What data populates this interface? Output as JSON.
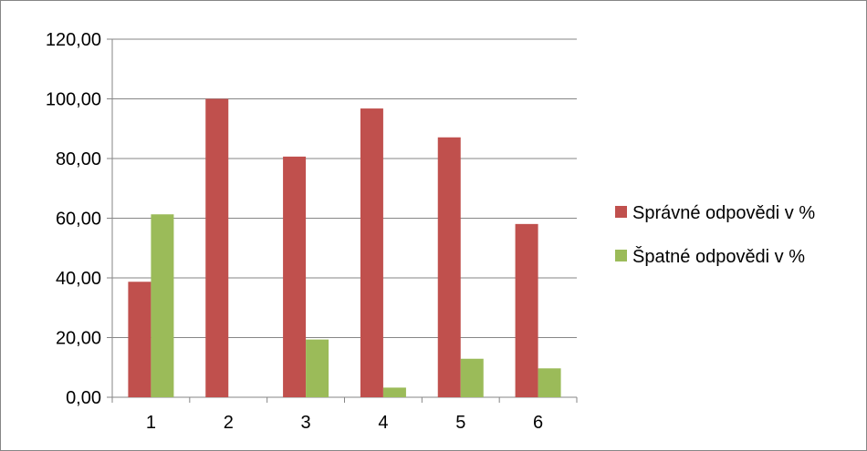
{
  "chart_data": {
    "type": "bar",
    "categories": [
      "1",
      "2",
      "3",
      "4",
      "5",
      "6"
    ],
    "series": [
      {
        "name": "Správné odpovědi v %",
        "values": [
          38.7,
          100.0,
          80.65,
          96.77,
          87.1,
          58.06
        ],
        "color": "#c0504d"
      },
      {
        "name": "Špatné odpovědi v %",
        "values": [
          61.3,
          0.0,
          19.35,
          3.23,
          12.9,
          9.68
        ],
        "color": "#9bbb59"
      }
    ],
    "y_ticks": [
      "0,00",
      "20,00",
      "40,00",
      "60,00",
      "80,00",
      "100,00",
      "120,00"
    ],
    "ylim": [
      0,
      120
    ],
    "grid": true,
    "legend_position": "right"
  }
}
